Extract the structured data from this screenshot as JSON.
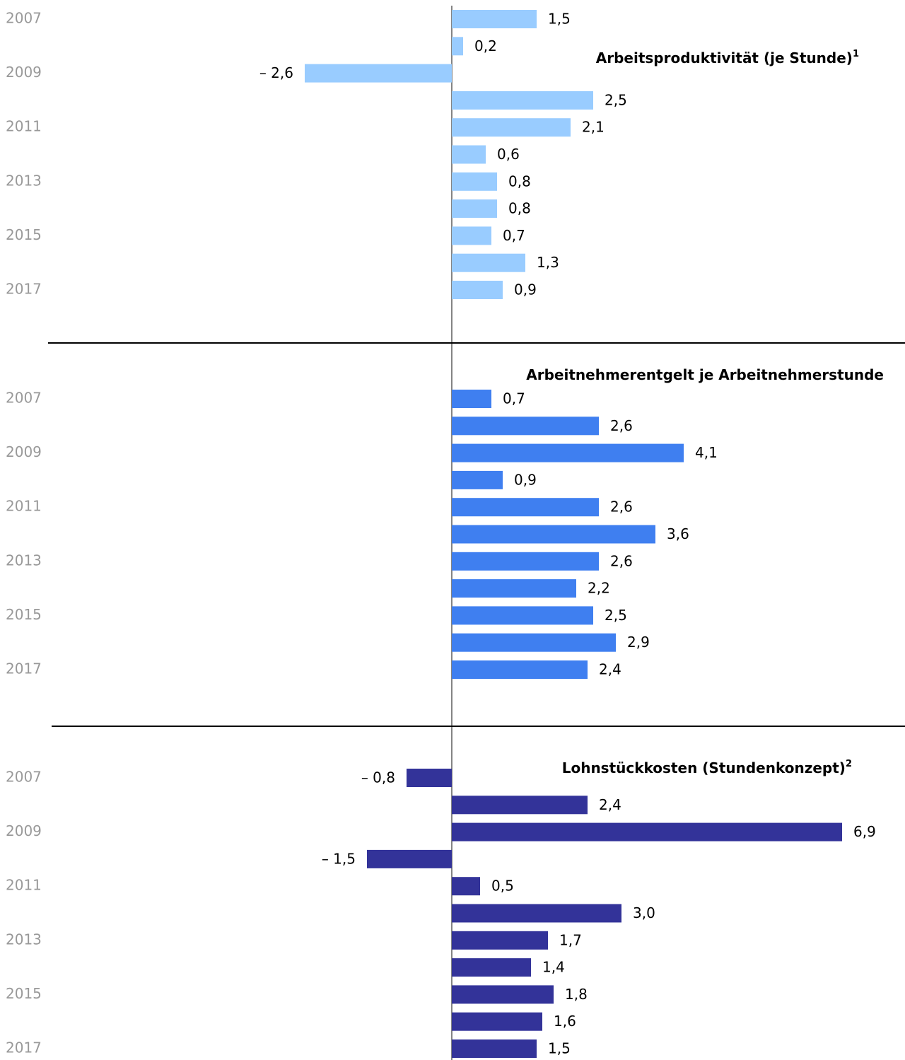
{
  "chart_data": [
    {
      "type": "bar",
      "title": "Arbeitsproduktivität (je Stunde)",
      "title_note": "1",
      "categories": [
        "2007",
        null,
        "2009",
        null,
        "2011",
        null,
        "2013",
        null,
        "2015",
        null,
        "2017"
      ],
      "values": [
        1.5,
        0.2,
        -2.6,
        2.5,
        2.1,
        0.6,
        0.8,
        0.8,
        0.7,
        1.3,
        0.9
      ],
      "value_labels": [
        "1,5",
        "0,2",
        "– 2,6",
        "2,5",
        "2,1",
        "0,6",
        "0,8",
        "0,8",
        "0,7",
        "1,3",
        "0,9"
      ],
      "color": "#99ccff"
    },
    {
      "type": "bar",
      "title": "Arbeitnehmerentgelt je Arbeitnehmerstunde",
      "categories": [
        "2007",
        null,
        "2009",
        null,
        "2011",
        null,
        "2013",
        null,
        "2015",
        null,
        "2017"
      ],
      "values": [
        0.7,
        2.6,
        4.1,
        0.9,
        2.6,
        3.6,
        2.6,
        2.2,
        2.5,
        2.9,
        2.4
      ],
      "value_labels": [
        "0,7",
        "2,6",
        "4,1",
        "0,9",
        "2,6",
        "3,6",
        "2,6",
        "2,2",
        "2,5",
        "2,9",
        "2,4"
      ],
      "color": "#3f7ff0"
    },
    {
      "type": "bar",
      "title": "Lohnstückkosten (Stundenkonzept)",
      "title_note": "2",
      "categories": [
        "2007",
        null,
        "2009",
        null,
        "2011",
        null,
        "2013",
        null,
        "2015",
        null,
        "2017"
      ],
      "values": [
        -0.8,
        2.4,
        6.9,
        -1.5,
        0.5,
        3.0,
        1.7,
        1.4,
        1.8,
        1.6,
        1.5
      ],
      "value_labels": [
        "– 0,8",
        "2,4",
        "6,9",
        "– 1,5",
        "0,5",
        "3,0",
        "1,7",
        "1,4",
        "1,8",
        "1,6",
        "1,5"
      ],
      "color": "#333399"
    }
  ]
}
